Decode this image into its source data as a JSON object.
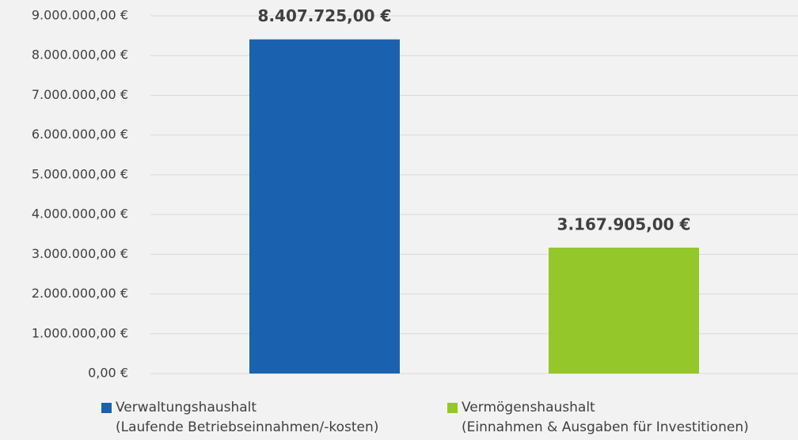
{
  "chart_data": {
    "type": "bar",
    "series": [
      {
        "name": "Verwaltungshaushalt\n(Laufende Betriebseinnahmen/-kosten)",
        "color": "#1a62b0",
        "values": [
          8407725
        ],
        "value_labels": [
          "8.407.725,00 €"
        ]
      },
      {
        "name": "Vermögenshaushalt\n(Einnahmen & Ausgaben für Investitionen)",
        "color": "#93c72a",
        "values": [
          3167905
        ],
        "value_labels": [
          "3.167.905,00 €"
        ]
      }
    ],
    "ylim": [
      0,
      9000000
    ],
    "yticks": [
      {
        "value": 0,
        "label": "0,00 €"
      },
      {
        "value": 1000000,
        "label": "1.000.000,00 €"
      },
      {
        "value": 2000000,
        "label": "2.000.000,00 €"
      },
      {
        "value": 3000000,
        "label": "3.000.000,00 €"
      },
      {
        "value": 4000000,
        "label": "4.000.000,00 €"
      },
      {
        "value": 5000000,
        "label": "5.000.000,00 €"
      },
      {
        "value": 6000000,
        "label": "6.000.000,00 €"
      },
      {
        "value": 7000000,
        "label": "7.000.000,00 €"
      },
      {
        "value": 8000000,
        "label": "8.000.000,00 €"
      },
      {
        "value": 9000000,
        "label": "9.000.000,00 €"
      }
    ],
    "grid": true,
    "legend": "bottom"
  }
}
